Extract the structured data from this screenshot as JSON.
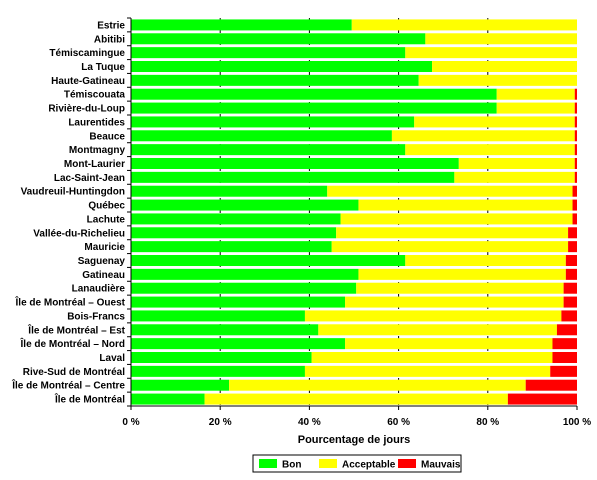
{
  "chart_data": {
    "type": "bar",
    "stacked": true,
    "orientation": "horizontal",
    "categories": [
      "Estrie",
      "Abitibi",
      "Témiscamingue",
      "La Tuque",
      "Haute-Gatineau",
      "Témiscouata",
      "Rivière-du-Loup",
      "Laurentides",
      "Beauce",
      "Montmagny",
      "Mont-Laurier",
      "Lac-Saint-Jean",
      "Vaudreuil-Huntingdon",
      "Québec",
      "Lachute",
      "Vallée-du-Richelieu",
      "Mauricie",
      "Saguenay",
      "Gatineau",
      "Lanaudière",
      "Île de Montréal – Ouest",
      "Bois-Francs",
      "Île de Montréal – Est",
      "Île de Montréal – Nord",
      "Laval",
      "Rive-Sud de Montréal",
      "Île de Montréal – Centre",
      "Île de Montréal"
    ],
    "series": [
      {
        "name": "Bon",
        "color": "#00ff00",
        "values": [
          49.5,
          66,
          61.5,
          67.5,
          64.5,
          82,
          82,
          63.5,
          58.5,
          61.5,
          73.5,
          72.5,
          44,
          51,
          47,
          46,
          45,
          61.5,
          51,
          50.5,
          48,
          39,
          42,
          48,
          40.5,
          39,
          22,
          16.5
        ]
      },
      {
        "name": "Acceptable",
        "color": "#ffff00",
        "values": [
          50.5,
          34,
          38.5,
          32.5,
          35.5,
          17.5,
          17.5,
          36,
          41,
          38,
          26,
          27,
          55,
          48,
          52,
          52,
          53,
          36,
          46.5,
          46.5,
          49,
          57.5,
          53.5,
          46.5,
          54,
          55,
          66.5,
          68
        ]
      },
      {
        "name": "Mauvais",
        "color": "#ff0000",
        "values": [
          0,
          0,
          0,
          0,
          0,
          0.5,
          0.5,
          0.5,
          0.5,
          0.5,
          0.5,
          0.5,
          1,
          1,
          1,
          2,
          2,
          2.5,
          2.5,
          3,
          3,
          3.5,
          4.5,
          5.5,
          5.5,
          6,
          11.5,
          15.5
        ]
      }
    ],
    "xlim": [
      0,
      100
    ],
    "xticks": [
      "0 %",
      "20 %",
      "40 %",
      "60 %",
      "80 %",
      "100 %"
    ],
    "xlabel": "Pourcentage de jours",
    "ylabel": "",
    "grid": "vertical dashed",
    "legend_position": "bottom"
  }
}
